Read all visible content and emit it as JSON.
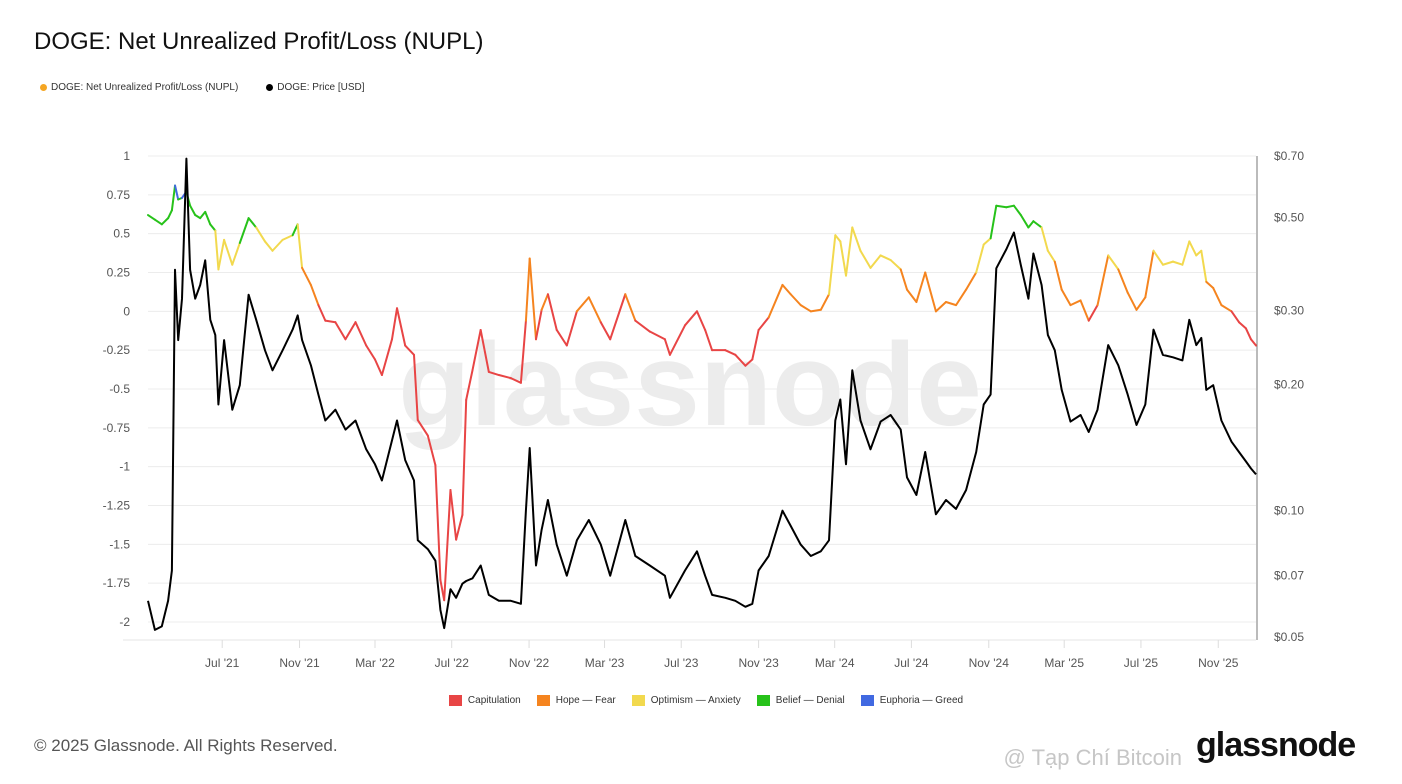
{
  "title": "DOGE: Net Unrealized Profit/Loss (NUPL)",
  "legend": [
    {
      "label": "DOGE: Net Unrealized Profit/Loss (NUPL)",
      "color": "#f5a623"
    },
    {
      "label": "DOGE: Price [USD]",
      "color": "#000000"
    }
  ],
  "zone_legend": [
    {
      "label": "Capitulation",
      "color": "#e84545",
      "range": [
        -10,
        0
      ]
    },
    {
      "label": "Hope — Fear",
      "color": "#f5841f",
      "range": [
        0,
        0.25
      ]
    },
    {
      "label": "Optimism — Anxiety",
      "color": "#f2d94e",
      "range": [
        0.25,
        0.5
      ]
    },
    {
      "label": "Belief — Denial",
      "color": "#27c21a",
      "range": [
        0.5,
        0.75
      ]
    },
    {
      "label": "Euphoria — Greed",
      "color": "#4169e1",
      "range": [
        0.75,
        10
      ]
    }
  ],
  "watermark": "glassnode",
  "footer": "© 2025 Glassnode. All Rights Reserved.",
  "logo": "glassnode",
  "overlay_watermark": "@ Tạp Chí Bitcoin",
  "chart_data": {
    "type": "line",
    "title": "DOGE: Net Unrealized Profit/Loss (NUPL)",
    "xlim": [
      "2021-03-05",
      "2025-12-31"
    ],
    "x_ticks": [
      {
        "date": "2021-07-01",
        "label": "Jul '21"
      },
      {
        "date": "2021-11-01",
        "label": "Nov '21"
      },
      {
        "date": "2022-03-01",
        "label": "Mar '22"
      },
      {
        "date": "2022-07-01",
        "label": "Jul '22"
      },
      {
        "date": "2022-11-01",
        "label": "Nov '22"
      },
      {
        "date": "2023-03-01",
        "label": "Mar '23"
      },
      {
        "date": "2023-07-01",
        "label": "Jul '23"
      },
      {
        "date": "2023-11-01",
        "label": "Nov '23"
      },
      {
        "date": "2024-03-01",
        "label": "Mar '24"
      },
      {
        "date": "2024-07-01",
        "label": "Jul '24"
      },
      {
        "date": "2024-11-01",
        "label": "Nov '24"
      },
      {
        "date": "2025-03-01",
        "label": "Mar '25"
      },
      {
        "date": "2025-07-01",
        "label": "Jul '25"
      },
      {
        "date": "2025-11-01",
        "label": "Nov '25"
      }
    ],
    "y_left": {
      "ylim": [
        -2,
        1
      ],
      "ticks": [
        1,
        0.75,
        0.5,
        0.25,
        0,
        -0.25,
        -0.5,
        -0.75,
        -1,
        -1.25,
        -1.5,
        -1.75,
        -2
      ],
      "tick_labels": [
        "1",
        "0.75",
        "0.5",
        "0.25",
        "0",
        "-0.25",
        "-0.5",
        "-0.75",
        "-1",
        "-1.25",
        "-1.5",
        "-1.75",
        "-2"
      ]
    },
    "y_right": {
      "scale": "log",
      "ylim": [
        0.05,
        0.7
      ],
      "ticks": [
        0.7,
        0.5,
        0.3,
        0.2,
        0.1,
        0.07,
        0.05
      ],
      "tick_labels": [
        "$0.70",
        "$0.50",
        "$0.30",
        "$0.20",
        "$0.10",
        "$0.07",
        "$0.05"
      ]
    },
    "grid": true,
    "legend_position": "top-left",
    "dates": [
      "2021-03-05",
      "2021-03-16",
      "2021-03-27",
      "2021-04-06",
      "2021-04-12",
      "2021-04-17",
      "2021-04-22",
      "2021-04-28",
      "2021-05-05",
      "2021-05-11",
      "2021-05-19",
      "2021-05-27",
      "2021-06-04",
      "2021-06-12",
      "2021-06-20",
      "2021-06-25",
      "2021-07-04",
      "2021-07-17",
      "2021-07-29",
      "2021-08-12",
      "2021-08-24",
      "2021-09-07",
      "2021-09-19",
      "2021-10-05",
      "2021-10-21",
      "2021-10-29",
      "2021-11-05",
      "2021-11-19",
      "2021-12-01",
      "2021-12-12",
      "2021-12-28",
      "2022-01-13",
      "2022-01-29",
      "2022-02-15",
      "2022-03-01",
      "2022-03-12",
      "2022-03-28",
      "2022-04-05",
      "2022-04-18",
      "2022-05-02",
      "2022-05-08",
      "2022-05-24",
      "2022-06-05",
      "2022-06-13",
      "2022-06-19",
      "2022-06-29",
      "2022-07-08",
      "2022-07-18",
      "2022-07-24",
      "2022-08-03",
      "2022-08-16",
      "2022-08-29",
      "2022-09-14",
      "2022-10-03",
      "2022-10-19",
      "2022-10-27",
      "2022-11-02",
      "2022-11-12",
      "2022-11-21",
      "2022-12-01",
      "2022-12-15",
      "2022-12-31",
      "2023-01-16",
      "2023-02-04",
      "2023-02-23",
      "2023-03-10",
      "2023-04-03",
      "2023-04-19",
      "2023-05-12",
      "2023-06-05",
      "2023-06-13",
      "2023-07-07",
      "2023-07-26",
      "2023-08-08",
      "2023-08-19",
      "2023-09-09",
      "2023-09-25",
      "2023-10-11",
      "2023-10-22",
      "2023-11-01",
      "2023-11-17",
      "2023-12-09",
      "2023-12-22",
      "2024-01-07",
      "2024-01-23",
      "2024-02-08",
      "2024-02-21",
      "2024-03-02",
      "2024-03-10",
      "2024-03-19",
      "2024-03-29",
      "2024-04-11",
      "2024-04-27",
      "2024-05-13",
      "2024-05-29",
      "2024-06-14",
      "2024-06-24",
      "2024-07-09",
      "2024-07-23",
      "2024-08-09",
      "2024-08-25",
      "2024-09-10",
      "2024-09-26",
      "2024-10-12",
      "2024-10-24",
      "2024-11-04",
      "2024-11-13",
      "2024-11-29",
      "2024-12-11",
      "2024-12-22",
      "2025-01-03",
      "2025-01-11",
      "2025-01-24",
      "2025-02-03",
      "2025-02-14",
      "2025-02-25",
      "2025-03-11",
      "2025-03-27",
      "2025-04-09",
      "2025-04-23",
      "2025-05-10",
      "2025-05-26",
      "2025-06-10",
      "2025-06-24",
      "2025-07-08",
      "2025-07-21",
      "2025-08-05",
      "2025-08-21",
      "2025-09-05",
      "2025-09-16",
      "2025-09-27",
      "2025-10-05",
      "2025-10-13",
      "2025-10-24",
      "2025-11-06",
      "2025-11-22",
      "2025-12-04",
      "2025-12-15",
      "2025-12-23",
      "2025-12-31"
    ],
    "series": [
      {
        "name": "DOGE: Net Unrealized Profit/Loss (NUPL)",
        "axis": "left",
        "values": [
          0.62,
          0.59,
          0.56,
          0.6,
          0.65,
          0.81,
          0.72,
          0.73,
          0.77,
          0.68,
          0.62,
          0.6,
          0.64,
          0.56,
          0.52,
          0.27,
          0.46,
          0.3,
          0.44,
          0.6,
          0.54,
          0.45,
          0.39,
          0.46,
          0.49,
          0.56,
          0.28,
          0.17,
          0.04,
          -0.06,
          -0.07,
          -0.18,
          -0.07,
          -0.22,
          -0.31,
          -0.41,
          -0.18,
          0.02,
          -0.22,
          -0.28,
          -0.7,
          -0.8,
          -0.99,
          -1.73,
          -1.86,
          -1.15,
          -1.47,
          -1.31,
          -0.57,
          -0.38,
          -0.12,
          -0.39,
          -0.41,
          -0.43,
          -0.46,
          -0.06,
          0.34,
          -0.18,
          0.01,
          0.11,
          -0.12,
          -0.22,
          0.0,
          0.09,
          -0.07,
          -0.18,
          0.11,
          -0.06,
          -0.13,
          -0.18,
          -0.28,
          -0.09,
          0.0,
          -0.12,
          -0.25,
          -0.25,
          -0.28,
          -0.35,
          -0.31,
          -0.12,
          -0.04,
          0.17,
          0.11,
          0.04,
          0.0,
          0.01,
          0.11,
          0.49,
          0.45,
          0.23,
          0.54,
          0.39,
          0.28,
          0.36,
          0.33,
          0.27,
          0.14,
          0.06,
          0.25,
          0.0,
          0.06,
          0.04,
          0.14,
          0.25,
          0.43,
          0.47,
          0.68,
          0.67,
          0.68,
          0.62,
          0.54,
          0.58,
          0.54,
          0.39,
          0.32,
          0.14,
          0.04,
          0.07,
          -0.06,
          0.04,
          0.36,
          0.27,
          0.12,
          0.01,
          0.09,
          0.39,
          0.3,
          0.32,
          0.3,
          0.45,
          0.36,
          0.39,
          0.19,
          0.15,
          0.04,
          0.0,
          -0.07,
          -0.11,
          -0.18,
          -0.22
        ]
      },
      {
        "name": "DOGE: Price [USD]",
        "axis": "right",
        "values": [
          0.061,
          0.052,
          0.053,
          0.061,
          0.072,
          0.375,
          0.255,
          0.32,
          0.69,
          0.375,
          0.32,
          0.345,
          0.395,
          0.285,
          0.262,
          0.179,
          0.255,
          0.174,
          0.199,
          0.327,
          0.285,
          0.241,
          0.216,
          0.241,
          0.27,
          0.292,
          0.255,
          0.222,
          0.189,
          0.164,
          0.174,
          0.156,
          0.164,
          0.14,
          0.129,
          0.118,
          0.147,
          0.164,
          0.132,
          0.118,
          0.085,
          0.081,
          0.076,
          0.058,
          0.0525,
          0.065,
          0.062,
          0.067,
          0.068,
          0.069,
          0.074,
          0.063,
          0.061,
          0.061,
          0.06,
          0.1,
          0.141,
          0.074,
          0.09,
          0.106,
          0.083,
          0.07,
          0.085,
          0.095,
          0.083,
          0.07,
          0.095,
          0.078,
          0.074,
          0.07,
          0.062,
          0.072,
          0.08,
          0.07,
          0.063,
          0.062,
          0.061,
          0.059,
          0.06,
          0.072,
          0.078,
          0.1,
          0.092,
          0.083,
          0.078,
          0.08,
          0.085,
          0.164,
          0.184,
          0.129,
          0.216,
          0.164,
          0.14,
          0.163,
          0.169,
          0.156,
          0.12,
          0.109,
          0.138,
          0.098,
          0.106,
          0.101,
          0.112,
          0.138,
          0.179,
          0.189,
          0.378,
          0.42,
          0.46,
          0.385,
          0.32,
          0.41,
          0.345,
          0.262,
          0.241,
          0.194,
          0.163,
          0.169,
          0.154,
          0.174,
          0.248,
          0.222,
          0.189,
          0.16,
          0.179,
          0.27,
          0.235,
          0.232,
          0.228,
          0.285,
          0.248,
          0.258,
          0.194,
          0.199,
          0.164,
          0.146,
          0.138,
          0.131,
          0.126,
          0.122
        ]
      }
    ]
  }
}
